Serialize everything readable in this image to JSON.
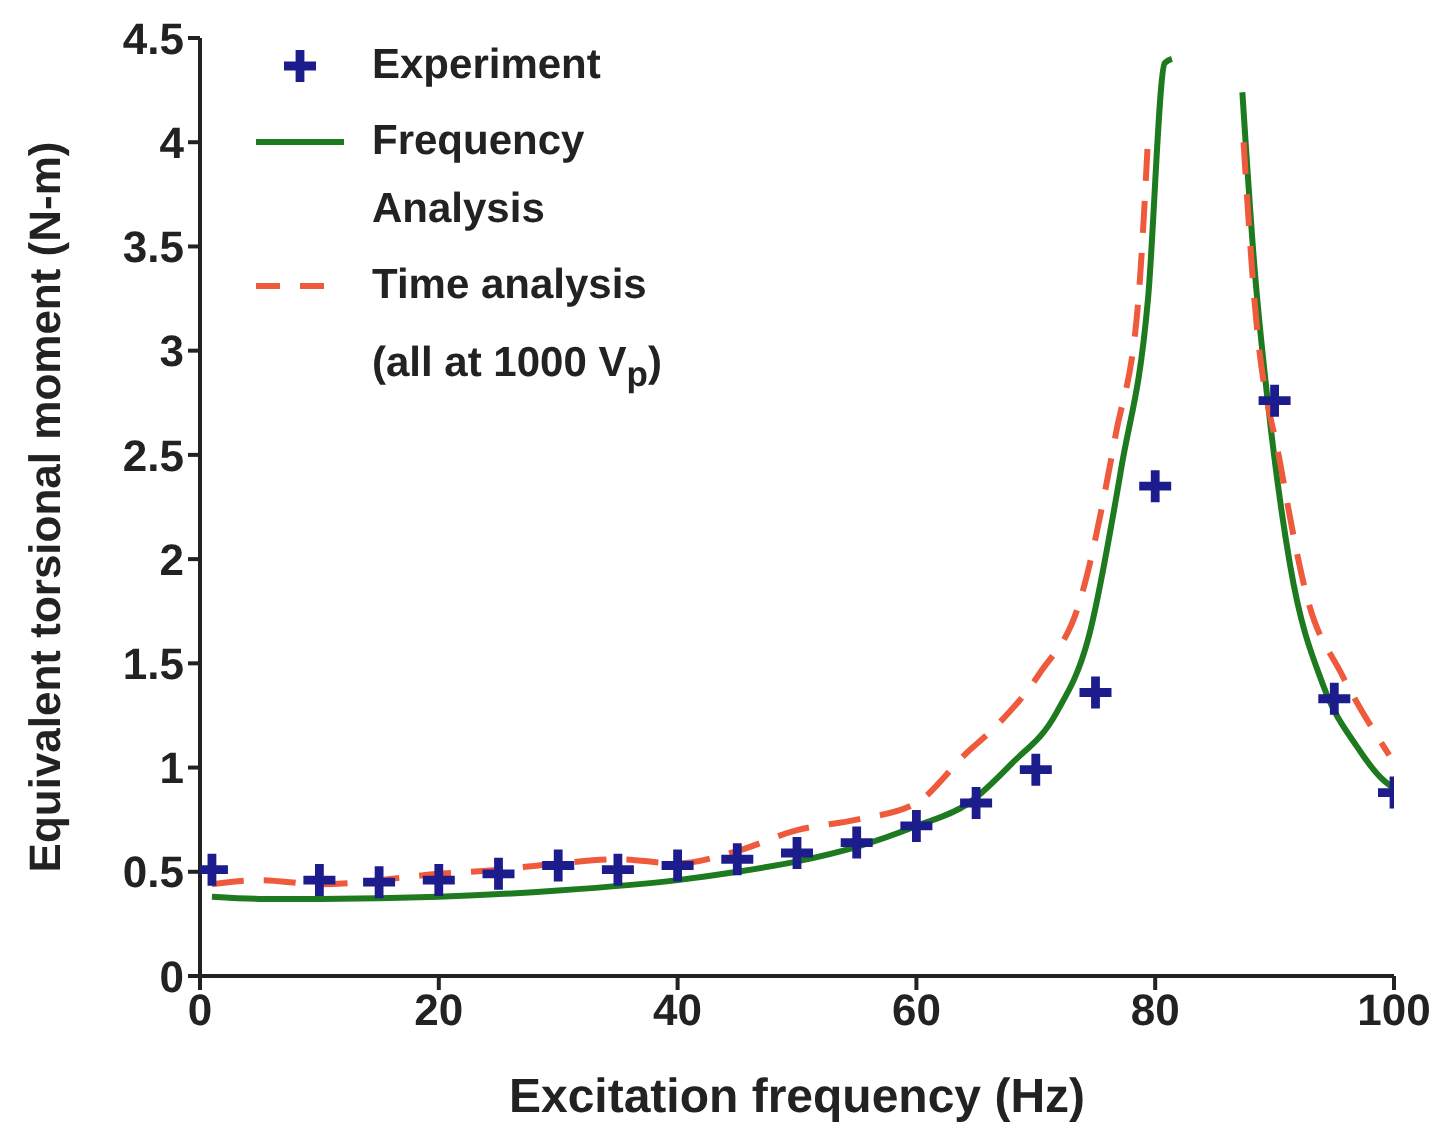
{
  "chart_data": {
    "type": "line",
    "xlabel": "Excitation frequency (Hz)",
    "ylabel": "Equivalent torsional moment (N-m)",
    "xlim": [
      0,
      100
    ],
    "xticks": [
      0,
      20,
      40,
      60,
      80,
      100
    ],
    "ylim": [
      0,
      4.5
    ],
    "yticks": [
      0,
      0.5,
      1,
      1.5,
      2,
      2.5,
      3,
      3.5,
      4,
      4.5
    ],
    "grid": false,
    "legend": "top left",
    "annotations": [
      "(all at 1000 V$_{p}$)"
    ],
    "series": [
      {
        "name": "Experiment",
        "type": "scatter",
        "marker": "cross",
        "color": "#1c1c8c",
        "x": [
          1,
          10,
          15,
          20,
          25,
          30,
          35,
          40,
          45,
          50,
          55,
          60,
          65,
          70,
          75,
          80,
          90,
          95,
          100
        ],
        "values": [
          0.51,
          0.46,
          0.45,
          0.46,
          0.49,
          0.53,
          0.51,
          0.53,
          0.56,
          0.59,
          0.64,
          0.72,
          0.83,
          0.99,
          1.36,
          2.35,
          2.76,
          1.33,
          0.88
        ]
      },
      {
        "name": "Frequency Analysis",
        "line_style": "solid",
        "color": "#1e7a1e",
        "x": [
          1,
          5,
          10,
          20,
          30,
          40,
          45,
          50,
          55,
          60,
          64.4,
          68,
          71.7,
          74.4,
          77.2,
          79.4,
          80.8,
          81.4,
          84,
          87.3,
          88.3,
          89.4,
          91.3,
          94.1,
          96.9,
          99.1,
          100
        ],
        "values": [
          0.38,
          0.37,
          0.37,
          0.38,
          0.41,
          0.46,
          0.5,
          0.55,
          0.62,
          0.72,
          0.83,
          1.02,
          1.26,
          1.62,
          2.45,
          3.25,
          4.38,
          4.4,
          null,
          4.24,
          3.41,
          2.77,
          1.97,
          1.39,
          1.1,
          0.94,
          0.9
        ]
      },
      {
        "name": "Time analysis",
        "line_style": "dashed",
        "color": "#f05a3c",
        "x": [
          1,
          5,
          10,
          20,
          25,
          30,
          35,
          40,
          45,
          50,
          55,
          60,
          64.2,
          66.7,
          70.3,
          73.7,
          76.7,
          78.6,
          79.4,
          84,
          87.4,
          88.3,
          90.5,
          92.8,
          95.6,
          99.6
        ],
        "values": [
          0.44,
          0.46,
          0.44,
          0.49,
          0.51,
          0.54,
          0.56,
          0.54,
          0.6,
          0.7,
          0.75,
          0.83,
          1.07,
          1.2,
          1.45,
          1.8,
          2.6,
          3.25,
          4.02,
          null,
          4.0,
          3.25,
          2.45,
          1.8,
          1.45,
          1.06
        ]
      }
    ]
  }
}
